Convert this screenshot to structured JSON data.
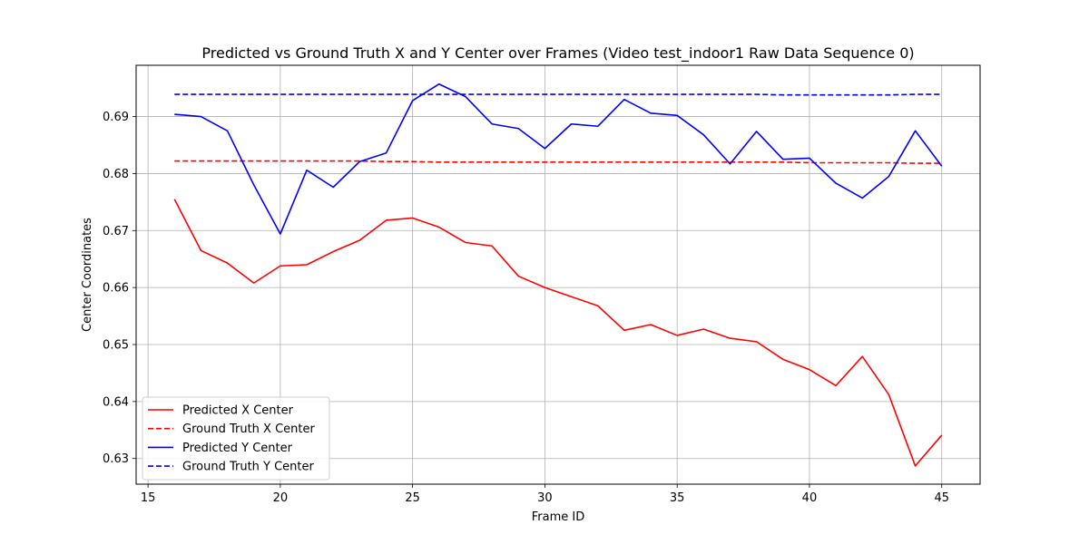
{
  "chart_data": {
    "type": "line",
    "title": "Predicted vs Ground Truth X and Y Center over Frames (Video test_indoor1 Raw Data Sequence 0)",
    "xlabel": "Frame ID",
    "ylabel": "Center Coordinates",
    "xlim": [
      14.55,
      46.45
    ],
    "ylim": [
      0.6255,
      0.699
    ],
    "xticks": [
      15,
      20,
      25,
      30,
      35,
      40,
      45
    ],
    "yticks": [
      0.63,
      0.64,
      0.65,
      0.66,
      0.67,
      0.68,
      0.69
    ],
    "ytick_labels": [
      "0.63",
      "0.64",
      "0.65",
      "0.66",
      "0.67",
      "0.68",
      "0.69"
    ],
    "grid": true,
    "legend_position": "lower-left",
    "x": [
      16,
      17,
      18,
      19,
      20,
      21,
      22,
      23,
      24,
      25,
      26,
      27,
      28,
      29,
      30,
      31,
      32,
      33,
      34,
      35,
      36,
      37,
      38,
      39,
      40,
      41,
      42,
      43,
      44,
      45
    ],
    "series": [
      {
        "name": "Predicted X Center",
        "color": "#ff0000",
        "dash": "solid",
        "values": [
          0.6755,
          0.6665,
          0.6643,
          0.6608,
          0.6638,
          0.664,
          0.6663,
          0.6683,
          0.6718,
          0.6722,
          0.6706,
          0.6679,
          0.6673,
          0.662,
          0.66,
          0.6584,
          0.6568,
          0.6525,
          0.6535,
          0.6516,
          0.6527,
          0.6511,
          0.6505,
          0.6474,
          0.6456,
          0.6428,
          0.6479,
          0.6412,
          0.6287,
          0.6341
        ]
      },
      {
        "name": "Ground Truth X Center",
        "color": "#ff0000",
        "dash": "dashed",
        "values": [
          0.6822,
          0.6822,
          0.6822,
          0.6822,
          0.6822,
          0.6822,
          0.6822,
          0.6822,
          0.6821,
          0.6821,
          0.682,
          0.682,
          0.682,
          0.682,
          0.682,
          0.682,
          0.682,
          0.682,
          0.682,
          0.682,
          0.682,
          0.682,
          0.682,
          0.682,
          0.6819,
          0.6819,
          0.6819,
          0.6819,
          0.6818,
          0.6818
        ]
      },
      {
        "name": "Predicted Y Center",
        "color": "#0000ff",
        "dash": "solid",
        "values": [
          0.6904,
          0.69,
          0.6875,
          0.678,
          0.6694,
          0.6806,
          0.6776,
          0.6821,
          0.6836,
          0.6928,
          0.6957,
          0.6935,
          0.6887,
          0.6879,
          0.6844,
          0.6887,
          0.6883,
          0.693,
          0.6906,
          0.6902,
          0.6868,
          0.6817,
          0.6874,
          0.6825,
          0.6827,
          0.6783,
          0.6757,
          0.6795,
          0.6875,
          0.6813
        ]
      },
      {
        "name": "Ground Truth Y Center",
        "color": "#0000ff",
        "dash": "dashed",
        "values": [
          0.6939,
          0.6939,
          0.6939,
          0.6939,
          0.6939,
          0.6939,
          0.6939,
          0.6939,
          0.6939,
          0.6939,
          0.6939,
          0.6939,
          0.6939,
          0.6939,
          0.6939,
          0.6939,
          0.6939,
          0.6939,
          0.6939,
          0.6939,
          0.6939,
          0.6939,
          0.6939,
          0.6938,
          0.6938,
          0.6938,
          0.6938,
          0.6938,
          0.6939,
          0.6939
        ]
      }
    ]
  }
}
